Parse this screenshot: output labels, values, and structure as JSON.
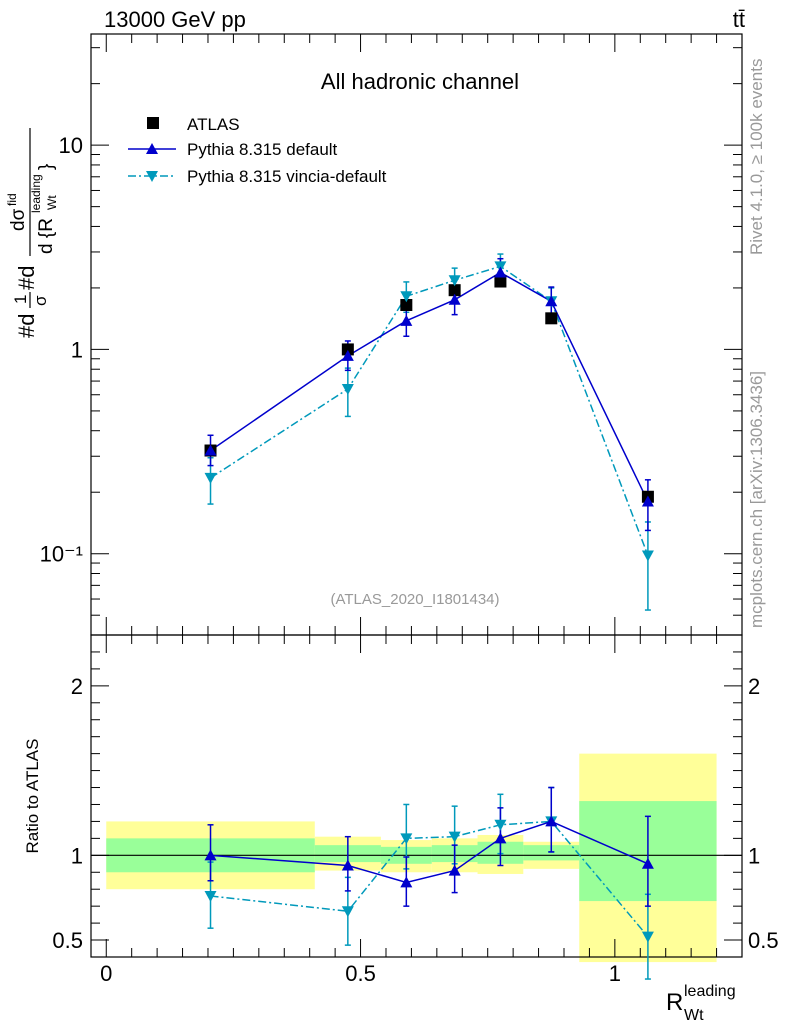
{
  "header": {
    "left": "13000 GeV pp",
    "right": "tt̄",
    "channel": "All hadronic channel",
    "side_rivet": "Rivet 4.1.0, ≥ 100k events",
    "side_source": "mcplots.cern.ch [arXiv:1306.3436]",
    "analysis_id": "(ATLAS_2020_I1801434)"
  },
  "colors": {
    "atlas": "#000000",
    "pythia": "#0000cc",
    "vincia": "#0099bb",
    "band_inner": "#99ff99",
    "band_outer": "#ffff99"
  },
  "chart_data": [
    {
      "type": "scatter",
      "panel": "main",
      "yscale": "log",
      "ylabel": "#d(1/σ) #d dσ^{fid} / d{R_{Wt}^{leading}}",
      "ylim": [
        0.04,
        35
      ],
      "xlim": [
        -0.03,
        1.25
      ],
      "ytick_labels": [
        "10⁻¹",
        "1",
        "10"
      ],
      "yticks": [
        0.1,
        1,
        10
      ],
      "legend_position": "top-left",
      "series": [
        {
          "name": "ATLAS",
          "marker": "square",
          "x": [
            0.205,
            0.475,
            0.59,
            0.685,
            0.775,
            0.875,
            1.065
          ],
          "y": [
            0.32,
            1.0,
            1.65,
            1.95,
            2.15,
            1.42,
            0.19
          ],
          "err": [
            0.02,
            0.05,
            0.06,
            0.07,
            0.08,
            0.06,
            0.015
          ]
        },
        {
          "name": "Pythia 8.315 default",
          "marker": "triangle-up",
          "line": "solid",
          "x": [
            0.205,
            0.475,
            0.59,
            0.685,
            0.775,
            0.875,
            1.065
          ],
          "y": [
            0.32,
            0.93,
            1.38,
            1.75,
            2.38,
            1.72,
            0.18
          ],
          "err_lo": [
            0.05,
            0.14,
            0.22,
            0.27,
            0.35,
            0.26,
            0.05
          ],
          "err_hi": [
            0.06,
            0.17,
            0.25,
            0.3,
            0.4,
            0.3,
            0.05
          ]
        },
        {
          "name": "Pythia 8.315 vincia-default",
          "marker": "triangle-down",
          "line": "dashdot",
          "x": [
            0.205,
            0.475,
            0.59,
            0.685,
            0.775,
            0.875,
            1.065
          ],
          "y": [
            0.235,
            0.64,
            1.82,
            2.18,
            2.55,
            1.72,
            0.098
          ],
          "err_lo": [
            0.06,
            0.17,
            0.3,
            0.3,
            0.35,
            0.28,
            0.045
          ],
          "err_hi": [
            0.06,
            0.17,
            0.32,
            0.32,
            0.38,
            0.28,
            0.045
          ]
        }
      ]
    },
    {
      "type": "scatter",
      "panel": "ratio",
      "ylabel": "Ratio to ATLAS",
      "xlabel": "R_{Wt}^{leading}",
      "xlabel_main": "R",
      "xlabel_super": "leading",
      "xlabel_sub": "Wt",
      "ylim": [
        0.4,
        2.3
      ],
      "xlim": [
        -0.03,
        1.25
      ],
      "xticks": [
        0,
        0.5,
        1
      ],
      "xtick_labels": [
        "0",
        "0.5",
        "1"
      ],
      "yticks": [
        0.5,
        1,
        2
      ],
      "ytick_labels": [
        "0.5",
        "1",
        "2"
      ],
      "bins": [
        {
          "lo": 0.0,
          "hi": 0.41,
          "inner": [
            0.9,
            1.1
          ],
          "outer": [
            0.8,
            1.2
          ]
        },
        {
          "lo": 0.41,
          "hi": 0.54,
          "inner": [
            0.96,
            1.06
          ],
          "outer": [
            0.91,
            1.11
          ]
        },
        {
          "lo": 0.54,
          "hi": 0.64,
          "inner": [
            0.95,
            1.05
          ],
          "outer": [
            0.9,
            1.09
          ]
        },
        {
          "lo": 0.64,
          "hi": 0.73,
          "inner": [
            0.96,
            1.06
          ],
          "outer": [
            0.9,
            1.1
          ]
        },
        {
          "lo": 0.73,
          "hi": 0.82,
          "inner": [
            0.95,
            1.08
          ],
          "outer": [
            0.89,
            1.12
          ]
        },
        {
          "lo": 0.82,
          "hi": 0.93,
          "inner": [
            0.97,
            1.06
          ],
          "outer": [
            0.92,
            1.08
          ]
        },
        {
          "lo": 0.93,
          "hi": 1.2,
          "inner": [
            0.73,
            1.32
          ],
          "outer": [
            0.37,
            1.6
          ]
        }
      ],
      "series": [
        {
          "name": "Pythia 8.315 default",
          "x": [
            0.205,
            0.475,
            0.59,
            0.685,
            0.775,
            0.875,
            1.065
          ],
          "y": [
            1.0,
            0.94,
            0.84,
            0.91,
            1.1,
            1.2,
            0.95
          ],
          "err_lo": [
            0.15,
            0.15,
            0.14,
            0.13,
            0.16,
            0.18,
            0.25
          ],
          "err_hi": [
            0.18,
            0.17,
            0.15,
            0.15,
            0.18,
            0.2,
            0.28
          ]
        },
        {
          "name": "Pythia 8.315 vincia-default",
          "x": [
            0.205,
            0.475,
            0.59,
            0.685,
            0.775,
            0.875,
            1.065
          ],
          "y": [
            0.76,
            0.67,
            1.1,
            1.11,
            1.18,
            1.2,
            0.52
          ],
          "err_lo": [
            0.19,
            0.2,
            0.18,
            0.16,
            0.17,
            0.18,
            0.25
          ],
          "err_hi": [
            0.2,
            0.2,
            0.2,
            0.18,
            0.18,
            0.2,
            0.25
          ]
        }
      ]
    }
  ]
}
